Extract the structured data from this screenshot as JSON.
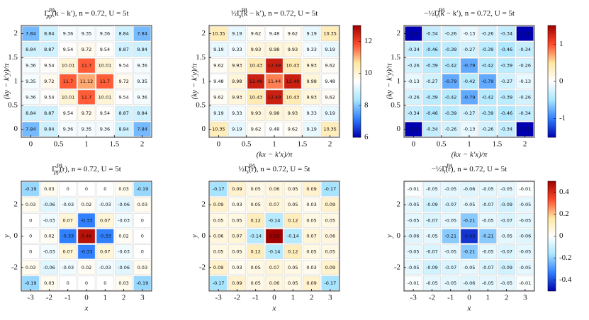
{
  "chart_data": [
    {
      "type": "heatmap",
      "title": {
        "symbol": "Γ",
        "sub": "pp",
        "sup": "PA",
        "rest": "(k − k′), n = 0.72, U = 5t"
      },
      "ylabel": "(ky − k′y)/π",
      "x": [
        0,
        0.33,
        0.67,
        1,
        1.33,
        1.67,
        2
      ],
      "y": [
        2,
        1.67,
        1.33,
        1,
        0.67,
        0.33,
        0
      ],
      "xlim": [
        -0.17,
        2.17
      ],
      "ylim": [
        -0.17,
        2.17
      ],
      "xticks": [
        0,
        0.5,
        1,
        1.5,
        2
      ],
      "yticks": [
        0,
        0.5,
        1,
        1.5,
        2
      ],
      "clim": [
        6,
        13
      ],
      "colormap": [
        "#0000b0",
        "#2f7fff",
        "#a8e6ff",
        "#ffffff",
        "#ffe6a0",
        "#ff4a2a",
        "#a00000"
      ],
      "values": [
        [
          7.84,
          8.84,
          9.36,
          9.35,
          9.36,
          8.84,
          7.84
        ],
        [
          8.84,
          8.87,
          9.54,
          9.72,
          9.54,
          8.87,
          8.84
        ],
        [
          9.36,
          9.54,
          10.01,
          11.7,
          10.01,
          9.54,
          9.36
        ],
        [
          9.35,
          9.72,
          11.7,
          11.12,
          11.7,
          9.72,
          9.35
        ],
        [
          9.36,
          9.54,
          10.01,
          11.7,
          10.01,
          9.54,
          9.36
        ],
        [
          8.84,
          8.87,
          9.54,
          9.72,
          9.54,
          8.87,
          8.84
        ],
        [
          7.84,
          8.84,
          9.36,
          9.35,
          9.36,
          8.84,
          7.84
        ]
      ]
    },
    {
      "type": "heatmap",
      "title": {
        "prefix": "½",
        "symbol": "Γ",
        "sub": "s",
        "sup": "PA",
        "rest": "(k − k′), n = 0.72, U = 5t"
      },
      "xlabel": "(kx − k′x)/π",
      "ylabel": "(ky − k′y)/π",
      "x": [
        0,
        0.33,
        0.67,
        1,
        1.33,
        1.67,
        2
      ],
      "y": [
        2,
        1.67,
        1.33,
        1,
        0.67,
        0.33,
        0
      ],
      "xlim": [
        -0.17,
        2.17
      ],
      "ylim": [
        -0.17,
        2.17
      ],
      "xticks": [
        0,
        0.5,
        1,
        1.5,
        2
      ],
      "yticks": [
        0,
        0.5,
        1,
        1.5,
        2
      ],
      "clim": [
        6,
        13
      ],
      "colorbar_ticks": [
        6,
        8,
        10,
        12
      ],
      "colormap": [
        "#0000b0",
        "#2f7fff",
        "#a8e6ff",
        "#ffffff",
        "#ffe6a0",
        "#ff4a2a",
        "#a00000"
      ],
      "values": [
        [
          10.35,
          9.19,
          9.62,
          9.48,
          9.62,
          9.19,
          10.35
        ],
        [
          9.19,
          9.33,
          9.93,
          9.98,
          9.93,
          9.33,
          9.19
        ],
        [
          9.62,
          9.93,
          10.43,
          12.49,
          10.43,
          9.93,
          9.62
        ],
        [
          9.48,
          9.98,
          12.49,
          11.44,
          12.49,
          9.98,
          9.48
        ],
        [
          9.62,
          9.93,
          10.43,
          12.49,
          10.43,
          9.93,
          9.62
        ],
        [
          9.19,
          9.33,
          9.93,
          9.98,
          9.93,
          9.33,
          9.19
        ],
        [
          10.35,
          9.19,
          9.62,
          9.48,
          9.62,
          9.19,
          10.35
        ]
      ]
    },
    {
      "type": "heatmap",
      "title": {
        "prefix": "−½",
        "symbol": "Γ",
        "sub": "t",
        "sup": "PA",
        "rest": "(k − k′), n = 0.72, U = 5t"
      },
      "xlabel": "(kx − k′x)/π",
      "ylabel": "(ky − k′y)/π",
      "x": [
        0,
        0.33,
        0.67,
        1,
        1.33,
        1.67,
        2
      ],
      "y": [
        2,
        1.67,
        1.33,
        1,
        0.67,
        0.33,
        0
      ],
      "xlim": [
        -0.17,
        2.17
      ],
      "ylim": [
        -0.17,
        2.17
      ],
      "xticks": [
        0,
        0.5,
        1,
        1.5,
        2
      ],
      "yticks": [
        0,
        0.5,
        1,
        1.5,
        2
      ],
      "clim": [
        -1.5,
        1.5
      ],
      "colorbar_ticks": [
        -1,
        0,
        1
      ],
      "colormap": [
        "#0000b0",
        "#2f7fff",
        "#a8e6ff",
        "#ffffff",
        "#ffe6a0",
        "#ff4a2a",
        "#a00000"
      ],
      "values": [
        [
          -1.5,
          -0.34,
          -0.26,
          -0.13,
          -0.26,
          -0.34,
          -1.5
        ],
        [
          -0.34,
          -0.46,
          -0.39,
          -0.27,
          -0.39,
          -0.46,
          -0.34
        ],
        [
          -0.26,
          -0.39,
          -0.42,
          -0.79,
          -0.42,
          -0.39,
          -0.26
        ],
        [
          -0.13,
          -0.27,
          -0.79,
          -0.42,
          -0.79,
          -0.27,
          -0.13
        ],
        [
          -0.26,
          -0.39,
          -0.42,
          -0.79,
          -0.42,
          -0.39,
          -0.26
        ],
        [
          -0.34,
          -0.46,
          -0.39,
          -0.27,
          -0.39,
          -0.46,
          -0.34
        ],
        [
          -1.5,
          -0.34,
          -0.26,
          -0.13,
          -0.26,
          -0.34,
          -1.5
        ]
      ]
    },
    {
      "type": "heatmap",
      "title": {
        "symbol": "Γ",
        "sub": "pp",
        "sup": "PA",
        "rest": "(r), n = 0.72, U = 5t"
      },
      "xlabel": "x",
      "ylabel": "y",
      "x": [
        -3,
        -2,
        -1,
        0,
        1,
        2,
        3
      ],
      "y": [
        3,
        2,
        1,
        0,
        -1,
        -2,
        -3
      ],
      "xlim": [
        -3.5,
        3.5
      ],
      "ylim": [
        -3.5,
        3.5
      ],
      "xticks": [
        -3,
        -2,
        -1,
        0,
        1,
        2,
        3
      ],
      "yticks": [
        -2,
        0,
        2
      ],
      "clim": [
        -0.5,
        0.5
      ],
      "colormap": [
        "#0000b0",
        "#2f7fff",
        "#a8e6ff",
        "#ffffff",
        "#ffe6a0",
        "#ff4a2a",
        "#a00000"
      ],
      "values": [
        [
          -0.19,
          0.03,
          0,
          0,
          0,
          0.03,
          -0.19
        ],
        [
          0.03,
          -0.06,
          -0.03,
          0.02,
          -0.03,
          -0.06,
          0.03
        ],
        [
          0,
          -0.03,
          0.07,
          -0.33,
          0.07,
          -0.03,
          0
        ],
        [
          0,
          0.02,
          -0.33,
          0.46,
          -0.33,
          0.02,
          0
        ],
        [
          0,
          -0.03,
          0.07,
          -0.33,
          0.07,
          -0.03,
          0
        ],
        [
          0.03,
          -0.06,
          -0.03,
          0.02,
          -0.03,
          -0.06,
          0.03
        ],
        [
          -0.19,
          0.03,
          0,
          0,
          0,
          0.03,
          -0.19
        ]
      ]
    },
    {
      "type": "heatmap",
      "title": {
        "prefix": "½",
        "symbol": "Γ",
        "sub": "s",
        "sup": "PA",
        "rest": "(r), n = 0.72, U = 5t"
      },
      "xlabel": "x",
      "ylabel": "y",
      "x": [
        -3,
        -2,
        -1,
        0,
        1,
        2,
        3
      ],
      "y": [
        3,
        2,
        1,
        0,
        -1,
        -2,
        -3
      ],
      "xlim": [
        -3.5,
        3.5
      ],
      "ylim": [
        -3.5,
        3.5
      ],
      "xticks": [
        -3,
        -2,
        -1,
        0,
        1,
        2,
        3
      ],
      "yticks": [
        -2,
        0,
        2
      ],
      "clim": [
        -0.5,
        0.5
      ],
      "colormap": [
        "#0000b0",
        "#2f7fff",
        "#a8e6ff",
        "#ffffff",
        "#ffe6a0",
        "#ff4a2a",
        "#a00000"
      ],
      "values": [
        [
          -0.17,
          0.09,
          0.05,
          0.06,
          0.05,
          0.09,
          -0.17
        ],
        [
          0.09,
          0.03,
          0.05,
          0.07,
          0.05,
          0.03,
          0.09
        ],
        [
          0.05,
          0.05,
          0.12,
          -0.14,
          0.12,
          0.05,
          0.05
        ],
        [
          0.06,
          0.07,
          -0.14,
          0.93,
          -0.14,
          0.07,
          0.06
        ],
        [
          0.05,
          0.05,
          0.12,
          -0.14,
          0.12,
          0.05,
          0.05
        ],
        [
          0.09,
          0.03,
          0.05,
          0.07,
          0.05,
          0.03,
          0.09
        ],
        [
          -0.17,
          0.09,
          0.05,
          0.06,
          0.05,
          0.09,
          -0.17
        ]
      ]
    },
    {
      "type": "heatmap",
      "title": {
        "prefix": "−½",
        "symbol": "Γ",
        "sub": "t",
        "sup": "PA",
        "rest": "(r), n = 0.72, U = 5t"
      },
      "xlabel": "x",
      "ylabel": "y",
      "x": [
        -3,
        -2,
        -1,
        0,
        1,
        2,
        3
      ],
      "y": [
        3,
        2,
        1,
        0,
        -1,
        -2,
        -3
      ],
      "xlim": [
        -3.5,
        3.5
      ],
      "ylim": [
        -3.5,
        3.5
      ],
      "xticks": [
        -3,
        -2,
        -1,
        0,
        1,
        2,
        3
      ],
      "yticks": [
        -2,
        0,
        2
      ],
      "clim": [
        -0.5,
        0.5
      ],
      "colorbar_ticks": [
        -0.4,
        -0.2,
        0,
        0.2,
        0.4
      ],
      "colormap": [
        "#0000b0",
        "#2f7fff",
        "#a8e6ff",
        "#ffffff",
        "#ffe6a0",
        "#ff4a2a",
        "#a00000"
      ],
      "values": [
        [
          -0.01,
          -0.05,
          -0.05,
          -0.06,
          -0.05,
          -0.05,
          -0.01
        ],
        [
          -0.05,
          -0.09,
          -0.07,
          -0.05,
          -0.07,
          -0.09,
          -0.05
        ],
        [
          -0.05,
          -0.07,
          -0.05,
          -0.21,
          -0.05,
          -0.07,
          -0.05
        ],
        [
          -0.06,
          -0.05,
          -0.21,
          -0.43,
          -0.21,
          -0.05,
          -0.06
        ],
        [
          -0.05,
          -0.07,
          -0.05,
          -0.21,
          -0.05,
          -0.07,
          -0.05
        ],
        [
          -0.05,
          -0.09,
          -0.07,
          -0.05,
          -0.07,
          -0.09,
          -0.05
        ],
        [
          -0.01,
          -0.05,
          -0.05,
          -0.06,
          -0.05,
          -0.05,
          -0.01
        ]
      ]
    }
  ]
}
